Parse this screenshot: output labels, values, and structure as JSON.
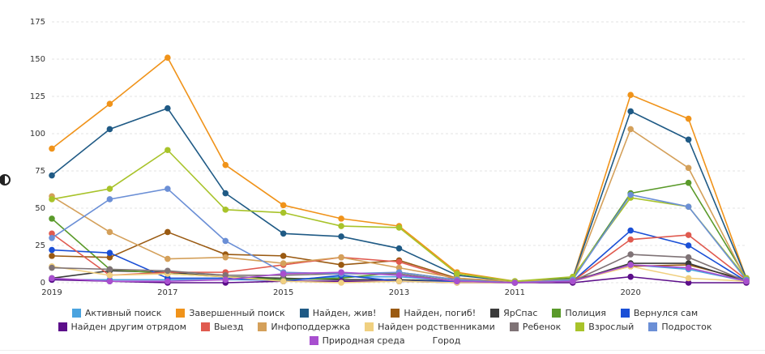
{
  "chart_data": {
    "type": "line",
    "categories": [
      "2019",
      null,
      "2017",
      null,
      "2015",
      null,
      "2013",
      null,
      "2011",
      null,
      "2020",
      null,
      null
    ],
    "ylim": [
      0,
      175
    ],
    "yticks": [
      0,
      25,
      50,
      75,
      100,
      125,
      150,
      175
    ],
    "grid": true,
    "series": [
      {
        "name": "Активный поиск",
        "color": "#4aa3df",
        "values": [
          2,
          2,
          2,
          2,
          2,
          4,
          4,
          1,
          0,
          1,
          12,
          9,
          1
        ]
      },
      {
        "name": "Завершенный поиск",
        "color": "#f0931a",
        "values": [
          90,
          120,
          151,
          79,
          52,
          43,
          38,
          7,
          1,
          3,
          126,
          110,
          3
        ]
      },
      {
        "name": "Найден, жив!",
        "color": "#1f5a85",
        "values": [
          72,
          103,
          117,
          60,
          33,
          31,
          23,
          5,
          1,
          3,
          115,
          96,
          3
        ]
      },
      {
        "name": "Найден, погиб!",
        "color": "#9a5a12",
        "values": [
          18,
          17,
          34,
          19,
          18,
          12,
          15,
          3,
          0,
          2,
          11,
          12,
          2
        ]
      },
      {
        "name": "ЯрСпас",
        "color": "#3a3a3a",
        "values": [
          3,
          8,
          7,
          4,
          3,
          2,
          2,
          1,
          0,
          1,
          13,
          13,
          1
        ]
      },
      {
        "name": "Полиция",
        "color": "#5a9a2a",
        "values": [
          43,
          9,
          6,
          4,
          2,
          3,
          7,
          2,
          0,
          3,
          60,
          67,
          3
        ]
      },
      {
        "name": "Вернулся сам",
        "color": "#1a4fd6",
        "values": [
          22,
          20,
          3,
          3,
          1,
          5,
          1,
          1,
          0,
          1,
          35,
          25,
          1
        ]
      },
      {
        "name": "Найден другим отрядом",
        "color": "#5c0e8a",
        "values": [
          2,
          1,
          0,
          0,
          1,
          1,
          1,
          0,
          0,
          0,
          4,
          0,
          0
        ]
      },
      {
        "name": "Выезд",
        "color": "#e05a4f",
        "values": [
          33,
          5,
          7,
          7,
          12,
          17,
          14,
          2,
          0,
          1,
          29,
          32,
          2
        ]
      },
      {
        "name": "Инфоподдержка",
        "color": "#d4a05a",
        "values": [
          58,
          34,
          16,
          17,
          13,
          17,
          10,
          3,
          1,
          2,
          103,
          77,
          2
        ]
      },
      {
        "name": "Найден родственниками",
        "color": "#f0d080",
        "values": [
          11,
          5,
          6,
          4,
          1,
          0,
          1,
          0,
          0,
          1,
          11,
          3,
          1
        ]
      },
      {
        "name": "Ребенок",
        "color": "#7f7376",
        "values": [
          10,
          9,
          8,
          5,
          5,
          6,
          6,
          1,
          0,
          1,
          19,
          17,
          1
        ]
      },
      {
        "name": "Взрослый",
        "color": "#a8c32a",
        "values": [
          56,
          63,
          89,
          49,
          47,
          38,
          37,
          6,
          1,
          4,
          57,
          51,
          3
        ]
      },
      {
        "name": "Подросток",
        "color": "#6b8fd6",
        "values": [
          30,
          56,
          63,
          28,
          7,
          6,
          7,
          2,
          0,
          2,
          59,
          51,
          2
        ]
      },
      {
        "name": "Природная среда",
        "color": "#a84fcf",
        "values": [
          3,
          1,
          1,
          2,
          6,
          7,
          5,
          1,
          0,
          1,
          12,
          10,
          1
        ]
      },
      {
        "name": "Город",
        "color": "#ffffff",
        "values": [
          null,
          null,
          null,
          null,
          null,
          null,
          null,
          null,
          null,
          null,
          null,
          null,
          null
        ]
      }
    ]
  }
}
